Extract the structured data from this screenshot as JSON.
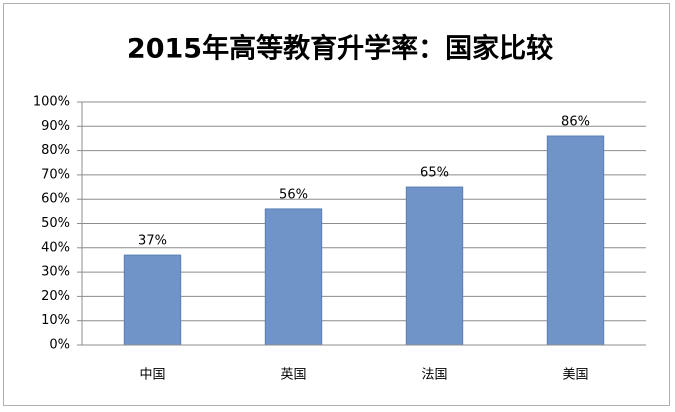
{
  "chart_data": {
    "type": "bar",
    "title": "2015年高等教育升学率：国家比较",
    "categories": [
      "中国",
      "英国",
      "法国",
      "美国"
    ],
    "values": [
      37,
      56,
      65,
      86
    ],
    "value_labels": [
      "37%",
      "56%",
      "65%",
      "86%"
    ],
    "color": "#7094c8",
    "ylim": [
      0,
      100
    ],
    "yticks": [
      {
        "value": 0,
        "label": "0%"
      },
      {
        "value": 10,
        "label": "10%"
      },
      {
        "value": 20,
        "label": "20%"
      },
      {
        "value": 30,
        "label": "30%"
      },
      {
        "value": 40,
        "label": "40%"
      },
      {
        "value": 50,
        "label": "50%"
      },
      {
        "value": 60,
        "label": "60%"
      },
      {
        "value": 70,
        "label": "70%"
      },
      {
        "value": 80,
        "label": "80%"
      },
      {
        "value": 90,
        "label": "90%"
      },
      {
        "value": 100,
        "label": "100%"
      }
    ],
    "grid": true
  }
}
